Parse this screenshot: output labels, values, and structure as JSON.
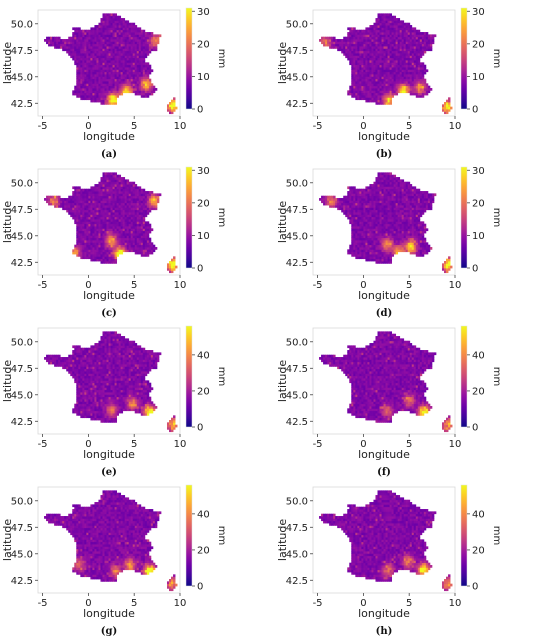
{
  "chart_data": [
    {
      "type": "heatmap",
      "panel_label": "(a)",
      "xlabel": "longitude",
      "ylabel": "latitude",
      "xlim": [
        -5.5,
        10
      ],
      "ylim": [
        41.3,
        51.3
      ],
      "xticks": [
        -5,
        0,
        5,
        10
      ],
      "yticks": [
        42.5,
        45.0,
        47.5,
        50.0
      ],
      "colorbar": {
        "label": "mm",
        "ticks": [
          0,
          10,
          20,
          30
        ],
        "range": [
          0,
          31
        ],
        "colormap": "plasma"
      },
      "hotspots": [
        [
          2.7,
          42.8,
          1.0
        ],
        [
          4.2,
          43.6,
          0.85
        ],
        [
          6.3,
          44.3,
          0.6
        ],
        [
          9.2,
          42.3,
          0.9
        ],
        [
          7.3,
          48.4,
          0.45
        ]
      ]
    },
    {
      "type": "heatmap",
      "panel_label": "(b)",
      "xlabel": "longitude",
      "ylabel": "latitude",
      "xlim": [
        -5.5,
        10
      ],
      "ylim": [
        41.3,
        51.3
      ],
      "xticks": [
        -5,
        0,
        5,
        10
      ],
      "yticks": [
        42.5,
        45.0,
        47.5,
        50.0
      ],
      "colorbar": {
        "label": "mm",
        "ticks": [
          0,
          10,
          20,
          30
        ],
        "range": [
          0,
          31
        ],
        "colormap": "plasma"
      },
      "hotspots": [
        [
          4.4,
          43.7,
          0.8
        ],
        [
          2.8,
          42.8,
          0.7
        ],
        [
          6.2,
          44.0,
          0.5
        ],
        [
          9.2,
          42.2,
          0.85
        ],
        [
          -4.2,
          48.2,
          0.4
        ]
      ]
    },
    {
      "type": "heatmap",
      "panel_label": "(c)",
      "xlabel": "longitude",
      "ylabel": "latitude",
      "xlim": [
        -5.5,
        10
      ],
      "ylim": [
        41.3,
        51.3
      ],
      "xticks": [
        -5,
        0,
        5,
        10
      ],
      "yticks": [
        42.5,
        45.0,
        47.5,
        50.0
      ],
      "colorbar": {
        "label": "mm",
        "ticks": [
          0,
          10,
          20,
          30
        ],
        "range": [
          0,
          31
        ],
        "colormap": "plasma"
      },
      "hotspots": [
        [
          3.5,
          43.3,
          0.9
        ],
        [
          2.5,
          44.6,
          0.6
        ],
        [
          7.2,
          48.3,
          0.6
        ],
        [
          -1.5,
          43.4,
          0.5
        ],
        [
          9.2,
          42.3,
          0.95
        ],
        [
          -3.8,
          48.3,
          0.45
        ]
      ]
    },
    {
      "type": "heatmap",
      "panel_label": "(d)",
      "xlabel": "longitude",
      "ylabel": "latitude",
      "xlim": [
        -5.5,
        10
      ],
      "ylim": [
        41.3,
        51.3
      ],
      "xticks": [
        -5,
        0,
        5,
        10
      ],
      "yticks": [
        42.5,
        45.0,
        47.5,
        50.0
      ],
      "colorbar": {
        "label": "mm",
        "ticks": [
          0,
          10,
          20,
          30
        ],
        "range": [
          0,
          31
        ],
        "colormap": "plasma"
      },
      "hotspots": [
        [
          5.2,
          44.0,
          0.75
        ],
        [
          3.9,
          43.5,
          0.65
        ],
        [
          2.6,
          44.2,
          0.5
        ],
        [
          -3.5,
          48.3,
          0.45
        ],
        [
          9.2,
          42.3,
          0.8
        ]
      ]
    },
    {
      "type": "heatmap",
      "panel_label": "(e)",
      "xlabel": "longitude",
      "ylabel": "latitude",
      "xlim": [
        -5.5,
        10
      ],
      "ylim": [
        41.3,
        51.3
      ],
      "xticks": [
        -5,
        0,
        5,
        10
      ],
      "yticks": [
        42.5,
        45.0,
        47.5,
        50.0
      ],
      "colorbar": {
        "label": "mm",
        "ticks": [
          0,
          20,
          40
        ],
        "range": [
          0,
          56
        ],
        "colormap": "plasma"
      },
      "hotspots": [
        [
          6.7,
          43.4,
          0.95
        ],
        [
          4.8,
          44.2,
          0.45
        ],
        [
          2.5,
          43.6,
          0.4
        ],
        [
          9.2,
          42.2,
          0.6
        ]
      ]
    },
    {
      "type": "heatmap",
      "panel_label": "(f)",
      "xlabel": "longitude",
      "ylabel": "latitude",
      "xlim": [
        -5.5,
        10
      ],
      "ylim": [
        41.3,
        51.3
      ],
      "xticks": [
        -5,
        0,
        5,
        10
      ],
      "yticks": [
        42.5,
        45.0,
        47.5,
        50.0
      ],
      "colorbar": {
        "label": "mm",
        "ticks": [
          0,
          20,
          40
        ],
        "range": [
          0,
          56
        ],
        "colormap": "plasma"
      },
      "hotspots": [
        [
          6.6,
          43.4,
          0.85
        ],
        [
          5.0,
          44.5,
          0.4
        ],
        [
          2.6,
          43.5,
          0.35
        ],
        [
          9.2,
          42.2,
          0.55
        ]
      ]
    },
    {
      "type": "heatmap",
      "panel_label": "(g)",
      "xlabel": "longitude",
      "ylabel": "latitude",
      "xlim": [
        -5.5,
        10
      ],
      "ylim": [
        41.3,
        51.3
      ],
      "xticks": [
        -5,
        0,
        5,
        10
      ],
      "yticks": [
        42.5,
        45.0,
        47.5,
        50.0
      ],
      "colorbar": {
        "label": "mm",
        "ticks": [
          0,
          20,
          40
        ],
        "range": [
          0,
          56
        ],
        "colormap": "plasma"
      },
      "hotspots": [
        [
          6.7,
          43.4,
          0.95
        ],
        [
          4.5,
          44.0,
          0.5
        ],
        [
          3.0,
          43.4,
          0.45
        ],
        [
          -1.0,
          44.0,
          0.35
        ],
        [
          9.2,
          42.2,
          0.55
        ]
      ]
    },
    {
      "type": "heatmap",
      "panel_label": "(h)",
      "xlabel": "longitude",
      "ylabel": "latitude",
      "xlim": [
        -5.5,
        10
      ],
      "ylim": [
        41.3,
        51.3
      ],
      "xticks": [
        -5,
        0,
        5,
        10
      ],
      "yticks": [
        42.5,
        45.0,
        47.5,
        50.0
      ],
      "colorbar": {
        "label": "mm",
        "ticks": [
          0,
          20,
          40
        ],
        "range": [
          0,
          56
        ],
        "colormap": "plasma"
      },
      "hotspots": [
        [
          6.6,
          43.5,
          0.9
        ],
        [
          4.9,
          44.3,
          0.45
        ],
        [
          2.7,
          43.5,
          0.4
        ],
        [
          9.2,
          42.2,
          0.5
        ]
      ]
    }
  ],
  "colors": {
    "plasma": [
      "#0d0887",
      "#41049d",
      "#6a00a8",
      "#8f0da4",
      "#b12a90",
      "#cc4778",
      "#e16462",
      "#f2844b",
      "#fca636",
      "#fcce25",
      "#f0f921"
    ],
    "base": "#5b1aa0"
  }
}
